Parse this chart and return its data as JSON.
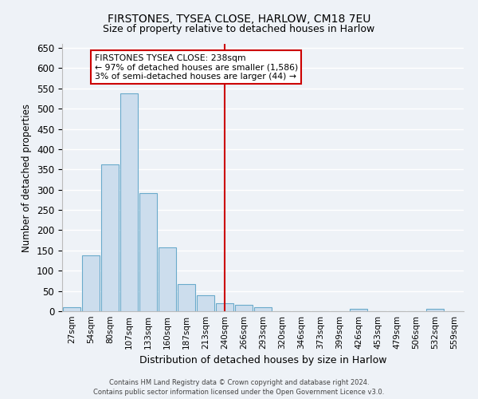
{
  "title": "FIRSTONES, TYSEA CLOSE, HARLOW, CM18 7EU",
  "subtitle": "Size of property relative to detached houses in Harlow",
  "xlabel": "Distribution of detached houses by size in Harlow",
  "ylabel": "Number of detached properties",
  "bin_labels": [
    "27sqm",
    "54sqm",
    "80sqm",
    "107sqm",
    "133sqm",
    "160sqm",
    "187sqm",
    "213sqm",
    "240sqm",
    "266sqm",
    "293sqm",
    "320sqm",
    "346sqm",
    "373sqm",
    "399sqm",
    "426sqm",
    "453sqm",
    "479sqm",
    "506sqm",
    "532sqm",
    "559sqm"
  ],
  "bar_heights": [
    10,
    137,
    363,
    537,
    292,
    158,
    67,
    40,
    20,
    15,
    10,
    0,
    0,
    0,
    0,
    5,
    0,
    0,
    0,
    5,
    0
  ],
  "bar_color": "#ccdded",
  "bar_edgecolor": "#6aaacb",
  "ylim": [
    0,
    660
  ],
  "yticks": [
    0,
    50,
    100,
    150,
    200,
    250,
    300,
    350,
    400,
    450,
    500,
    550,
    600,
    650
  ],
  "vline_index": 8,
  "vline_color": "#cc0000",
  "annotation_title": "FIRSTONES TYSEA CLOSE: 238sqm",
  "annotation_line2": "← 97% of detached houses are smaller (1,586)",
  "annotation_line3": "3% of semi-detached houses are larger (44) →",
  "annotation_box_color": "#cc0000",
  "footer1": "Contains HM Land Registry data © Crown copyright and database right 2024.",
  "footer2": "Contains public sector information licensed under the Open Government Licence v3.0.",
  "background_color": "#eef2f7",
  "grid_color": "#ffffff"
}
